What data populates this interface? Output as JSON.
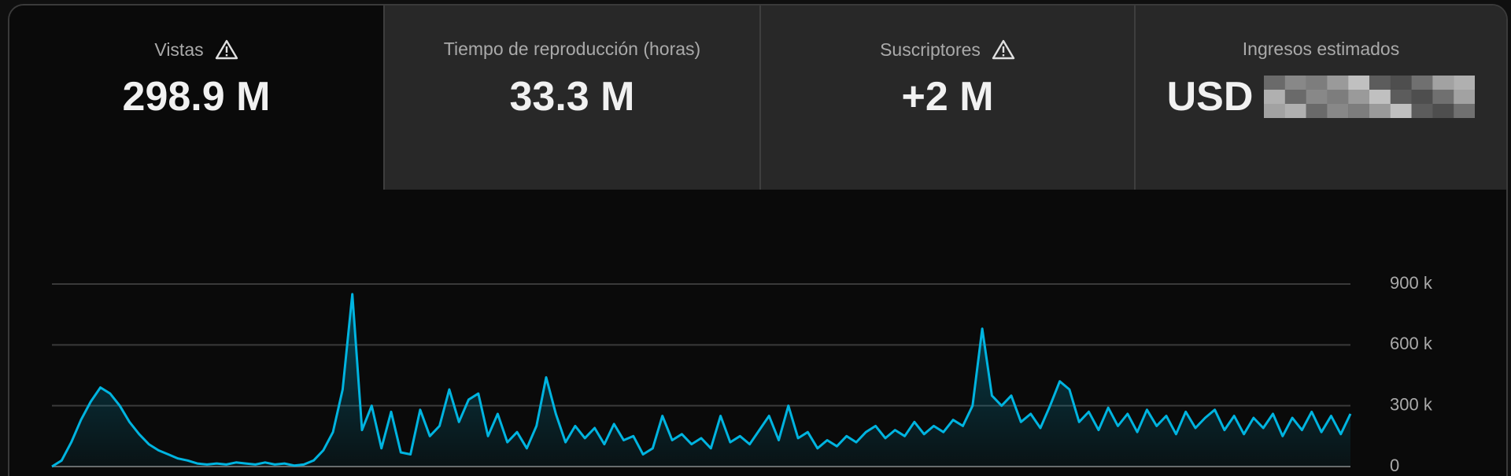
{
  "tabs": [
    {
      "label": "Vistas",
      "value": "298.9 M"
    },
    {
      "label": "Tiempo de reproducción (horas)",
      "value": "33.3 M"
    },
    {
      "label": "Suscriptores",
      "value": "+2 M"
    },
    {
      "label": "Ingresos estimados",
      "value": "USD"
    }
  ],
  "chart_data": {
    "type": "line",
    "color": "#00b4e0",
    "area": true,
    "grid": true,
    "ylim": [
      0,
      900000
    ],
    "yticks": [
      0,
      {
        "value": 300000,
        "label": "300 k"
      },
      {
        "value": 600000,
        "label": "600 k"
      },
      {
        "value": 900000,
        "label": "900 k"
      }
    ],
    "values": [
      0,
      30000,
      120000,
      230000,
      320000,
      390000,
      360000,
      300000,
      220000,
      160000,
      110000,
      80000,
      60000,
      40000,
      30000,
      15000,
      10000,
      15000,
      10000,
      20000,
      15000,
      10000,
      20000,
      10000,
      15000,
      5000,
      10000,
      30000,
      80000,
      170000,
      380000,
      850000,
      180000,
      300000,
      90000,
      270000,
      70000,
      60000,
      280000,
      150000,
      200000,
      380000,
      220000,
      330000,
      360000,
      150000,
      260000,
      120000,
      170000,
      90000,
      200000,
      440000,
      260000,
      120000,
      200000,
      140000,
      190000,
      110000,
      210000,
      130000,
      150000,
      60000,
      90000,
      250000,
      130000,
      160000,
      110000,
      140000,
      90000,
      250000,
      120000,
      150000,
      110000,
      180000,
      250000,
      130000,
      300000,
      140000,
      170000,
      90000,
      130000,
      100000,
      150000,
      120000,
      170000,
      200000,
      140000,
      180000,
      150000,
      220000,
      160000,
      200000,
      170000,
      230000,
      200000,
      300000,
      680000,
      350000,
      300000,
      350000,
      220000,
      260000,
      190000,
      300000,
      420000,
      380000,
      220000,
      270000,
      180000,
      290000,
      200000,
      260000,
      170000,
      280000,
      200000,
      250000,
      160000,
      270000,
      190000,
      240000,
      280000,
      180000,
      250000,
      160000,
      240000,
      190000,
      260000,
      150000,
      240000,
      180000,
      270000,
      170000,
      250000,
      160000,
      260000
    ]
  }
}
